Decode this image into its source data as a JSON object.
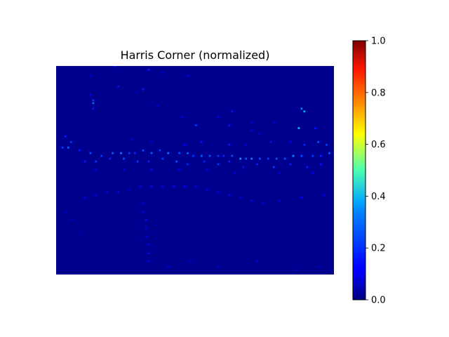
{
  "chart_data": {
    "type": "heatmap",
    "title": "Harris Corner (normalized)",
    "xlabel": "",
    "ylabel": "",
    "axes_visible": false,
    "colormap": "jet",
    "colorbar": {
      "range": [
        0.0,
        1.0
      ],
      "ticks": [
        0.0,
        0.2,
        0.4,
        0.6,
        0.8,
        1.0
      ],
      "tick_labels": [
        "0.0",
        "0.2",
        "0.4",
        "0.6",
        "0.8",
        "1.0"
      ],
      "position": "right"
    },
    "heatmap_background_value": 0.0,
    "image_grid": {
      "columns": 100,
      "rows": 75
    },
    "highlight_cells": [
      [
        21,
        0,
        0.12
      ],
      [
        33,
        1,
        0.15
      ],
      [
        38,
        2,
        0.1
      ],
      [
        47,
        3,
        0.1
      ],
      [
        12,
        3,
        0.08
      ],
      [
        22,
        7,
        0.14
      ],
      [
        31,
        8,
        0.16
      ],
      [
        29,
        9,
        0.1
      ],
      [
        12,
        10,
        0.12
      ],
      [
        13,
        12,
        0.18
      ],
      [
        13,
        13,
        0.22
      ],
      [
        13,
        15,
        0.15
      ],
      [
        36,
        14,
        0.1
      ],
      [
        63,
        16,
        0.14
      ],
      [
        88,
        15,
        0.25
      ],
      [
        89,
        16,
        0.3
      ],
      [
        58,
        18,
        0.12
      ],
      [
        70,
        20,
        0.1
      ],
      [
        78,
        20,
        0.12
      ],
      [
        45,
        18,
        0.1
      ],
      [
        50,
        21,
        0.18
      ],
      [
        62,
        21,
        0.14
      ],
      [
        87,
        22,
        0.3
      ],
      [
        93,
        22,
        0.14
      ],
      [
        70,
        23,
        0.1
      ],
      [
        73,
        24,
        0.1
      ],
      [
        3,
        25,
        0.15
      ],
      [
        5,
        27,
        0.18
      ],
      [
        27,
        26,
        0.12
      ],
      [
        34,
        27,
        0.1
      ],
      [
        46,
        28,
        0.12
      ],
      [
        52,
        27,
        0.14
      ],
      [
        62,
        28,
        0.15
      ],
      [
        68,
        28,
        0.1
      ],
      [
        77,
        27,
        0.14
      ],
      [
        84,
        27,
        0.12
      ],
      [
        89,
        28,
        0.16
      ],
      [
        94,
        27,
        0.2
      ],
      [
        97,
        28,
        0.18
      ],
      [
        2,
        29,
        0.18
      ],
      [
        4,
        29,
        0.22
      ],
      [
        8,
        30,
        0.15
      ],
      [
        12,
        31,
        0.2
      ],
      [
        16,
        32,
        0.18
      ],
      [
        20,
        31,
        0.22
      ],
      [
        23,
        31,
        0.25
      ],
      [
        26,
        31,
        0.18
      ],
      [
        28,
        31,
        0.16
      ],
      [
        31,
        30,
        0.2
      ],
      [
        34,
        31,
        0.22
      ],
      [
        37,
        30,
        0.18
      ],
      [
        40,
        31,
        0.24
      ],
      [
        44,
        31,
        0.2
      ],
      [
        47,
        31,
        0.22
      ],
      [
        49,
        32,
        0.18
      ],
      [
        52,
        32,
        0.22
      ],
      [
        55,
        32,
        0.2
      ],
      [
        58,
        32,
        0.18
      ],
      [
        60,
        32,
        0.16
      ],
      [
        63,
        32,
        0.2
      ],
      [
        66,
        33,
        0.28
      ],
      [
        68,
        33,
        0.22
      ],
      [
        70,
        33,
        0.25
      ],
      [
        73,
        33,
        0.2
      ],
      [
        76,
        33,
        0.18
      ],
      [
        79,
        33,
        0.22
      ],
      [
        82,
        33,
        0.2
      ],
      [
        85,
        32,
        0.26
      ],
      [
        88,
        32,
        0.2
      ],
      [
        92,
        32,
        0.18
      ],
      [
        95,
        32,
        0.16
      ],
      [
        98,
        31,
        0.22
      ],
      [
        10,
        34,
        0.15
      ],
      [
        14,
        34,
        0.18
      ],
      [
        19,
        33,
        0.16
      ],
      [
        24,
        33,
        0.2
      ],
      [
        29,
        34,
        0.18
      ],
      [
        33,
        34,
        0.16
      ],
      [
        38,
        33,
        0.18
      ],
      [
        43,
        34,
        0.2
      ],
      [
        47,
        35,
        0.16
      ],
      [
        53,
        34,
        0.15
      ],
      [
        58,
        35,
        0.18
      ],
      [
        62,
        34,
        0.16
      ],
      [
        67,
        36,
        0.14
      ],
      [
        72,
        35,
        0.16
      ],
      [
        78,
        36,
        0.18
      ],
      [
        84,
        35,
        0.15
      ],
      [
        90,
        36,
        0.16
      ],
      [
        95,
        35,
        0.14
      ],
      [
        14,
        37,
        0.12
      ],
      [
        24,
        37,
        0.12
      ],
      [
        34,
        37,
        0.14
      ],
      [
        44,
        37,
        0.12
      ],
      [
        54,
        37,
        0.1
      ],
      [
        64,
        38,
        0.12
      ],
      [
        80,
        38,
        0.1
      ],
      [
        92,
        38,
        0.12
      ],
      [
        10,
        47,
        0.12
      ],
      [
        14,
        46,
        0.12
      ],
      [
        18,
        45,
        0.1
      ],
      [
        22,
        45,
        0.12
      ],
      [
        26,
        44,
        0.1
      ],
      [
        30,
        43,
        0.12
      ],
      [
        34,
        43,
        0.14
      ],
      [
        38,
        43,
        0.12
      ],
      [
        42,
        43,
        0.14
      ],
      [
        46,
        43,
        0.12
      ],
      [
        50,
        43,
        0.1
      ],
      [
        54,
        44,
        0.12
      ],
      [
        58,
        45,
        0.1
      ],
      [
        62,
        46,
        0.12
      ],
      [
        66,
        47,
        0.1
      ],
      [
        70,
        48,
        0.12
      ],
      [
        74,
        49,
        0.1
      ],
      [
        80,
        48,
        0.1
      ],
      [
        88,
        47,
        0.12
      ],
      [
        96,
        46,
        0.1
      ],
      [
        31,
        49,
        0.12
      ],
      [
        31,
        52,
        0.12
      ],
      [
        32,
        55,
        0.14
      ],
      [
        32,
        58,
        0.12
      ],
      [
        32,
        61,
        0.12
      ],
      [
        33,
        64,
        0.12
      ],
      [
        33,
        67,
        0.14
      ],
      [
        33,
        70,
        0.12
      ],
      [
        3,
        52,
        0.08
      ],
      [
        5,
        55,
        0.08
      ],
      [
        9,
        60,
        0.08
      ],
      [
        40,
        72,
        0.1
      ],
      [
        48,
        70,
        0.08
      ],
      [
        58,
        72,
        0.08
      ],
      [
        72,
        70,
        0.08
      ],
      [
        86,
        73,
        0.08
      ],
      [
        94,
        72,
        0.08
      ]
    ]
  }
}
